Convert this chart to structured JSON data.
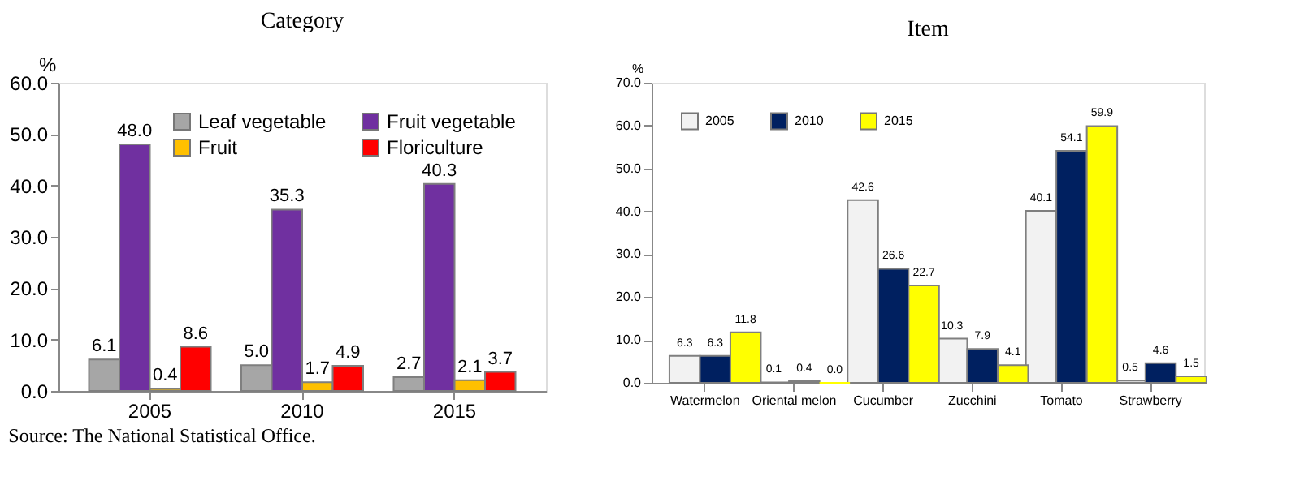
{
  "chart_data": [
    {
      "type": "bar",
      "title": "Category",
      "ylabel": "%",
      "categories": [
        "2005",
        "2010",
        "2015"
      ],
      "series": [
        {
          "name": "Leaf vegetable",
          "color": "#a6a6a6",
          "values": [
            6.1,
            5.0,
            2.7
          ],
          "value_labels": [
            "6.1",
            "5.0",
            "2.7"
          ]
        },
        {
          "name": "Fruit vegetable",
          "color": "#7030a0",
          "values": [
            48.0,
            35.3,
            40.3
          ],
          "value_labels": [
            "48.0",
            "35.3",
            "40.3"
          ]
        },
        {
          "name": "Fruit",
          "color": "#ffc000",
          "values": [
            0.4,
            1.7,
            2.1
          ],
          "value_labels": [
            "0.4",
            "1.7",
            "2.1"
          ]
        },
        {
          "name": "Floriculture",
          "color": "#ff0000",
          "values": [
            8.6,
            4.9,
            3.7
          ],
          "value_labels": [
            "8.6",
            "4.9",
            "3.7"
          ]
        }
      ],
      "ylim": [
        0,
        60
      ],
      "yticks": [
        {
          "value": 0,
          "label": "0.0"
        },
        {
          "value": 10,
          "label": "10.0"
        },
        {
          "value": 20,
          "label": "20.0"
        },
        {
          "value": 30,
          "label": "30.0"
        },
        {
          "value": 40,
          "label": "40.0"
        },
        {
          "value": 50,
          "label": "50.0"
        },
        {
          "value": 60,
          "label": "60.0"
        }
      ],
      "legend": "top right",
      "grid": false,
      "annotations": [
        "Source: The National Statistical Office."
      ]
    },
    {
      "type": "bar",
      "title": "Item",
      "ylabel": "%",
      "categories": [
        "Watermelon",
        "Oriental melon",
        "Cucumber",
        "Zucchini",
        "Tomato",
        "Strawberry"
      ],
      "series": [
        {
          "name": "2005",
          "color": "#f2f2f2",
          "values": [
            6.3,
            0.1,
            42.6,
            10.3,
            40.1,
            0.5
          ],
          "value_labels": [
            "6.3",
            "0.1",
            "42.6",
            "10.3",
            "40.1",
            "0.5"
          ]
        },
        {
          "name": "2010",
          "color": "#002060",
          "values": [
            6.3,
            0.4,
            26.6,
            7.9,
            54.1,
            4.6
          ],
          "value_labels": [
            "6.3",
            "0.4",
            "26.6",
            "7.9",
            "54.1",
            "4.6"
          ]
        },
        {
          "name": "2015",
          "color": "#ffff00",
          "values": [
            11.8,
            0.0,
            22.7,
            4.1,
            59.9,
            1.5
          ],
          "value_labels": [
            "11.8",
            "0.0",
            "22.7",
            "4.1",
            "59.9",
            "1.5"
          ]
        }
      ],
      "ylim": [
        0,
        70
      ],
      "yticks": [
        {
          "value": 0,
          "label": "0.0"
        },
        {
          "value": 10,
          "label": "10.0"
        },
        {
          "value": 20,
          "label": "20.0"
        },
        {
          "value": 30,
          "label": "30.0"
        },
        {
          "value": 40,
          "label": "40.0"
        },
        {
          "value": 50,
          "label": "50.0"
        },
        {
          "value": 60,
          "label": "60.0"
        },
        {
          "value": 70,
          "label": "70.0"
        }
      ],
      "legend": "top left",
      "grid": false
    }
  ]
}
